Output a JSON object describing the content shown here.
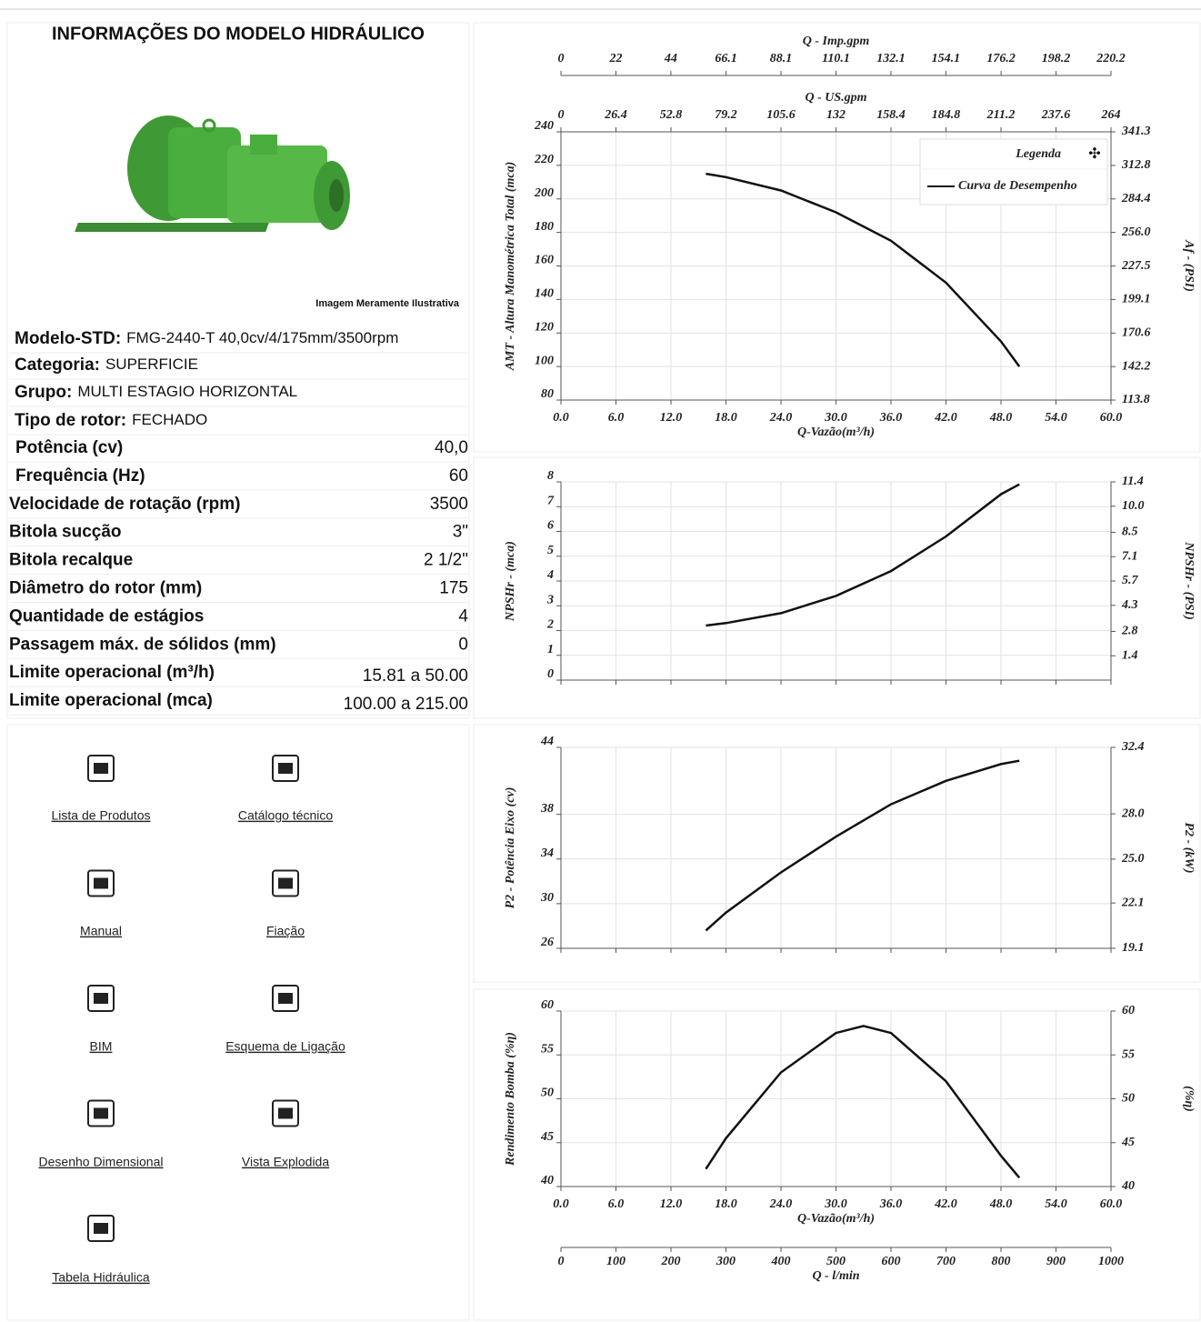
{
  "info": {
    "title": "INFORMAÇÕES DO MODELO HIDRÁULICO",
    "image_caption": "Imagem Meramente Ilustrativa",
    "summary": [
      {
        "label": "Modelo-STD:",
        "value": "FMG-2440-T 40,0cv/4/175mm/3500rpm"
      },
      {
        "label": "Categoria:",
        "value": "SUPERFICIE"
      },
      {
        "label": "Grupo:",
        "value": "MULTI ESTAGIO HORIZONTAL"
      },
      {
        "label": "Tipo de rotor:",
        "value": "FECHADO"
      }
    ],
    "specs": [
      {
        "label": "Potência (cv)",
        "value": "40,0"
      },
      {
        "label": "Frequência (Hz)",
        "value": "60"
      },
      {
        "label": "Velocidade de rotação (rpm)",
        "value": "3500"
      },
      {
        "label": "Bitola sucção",
        "value": "3\""
      },
      {
        "label": "Bitola recalque",
        "value": "2 1/2\""
      },
      {
        "label": "Diâmetro do rotor (mm)",
        "value": "175"
      },
      {
        "label": "Quantidade de estágios",
        "value": "4"
      },
      {
        "label": "Passagem máx. de sólidos (mm)",
        "value": "0"
      },
      {
        "label": "Limite operacional (m³/h)",
        "value": "15.81 a 50.00"
      },
      {
        "label": "Limite operacional (mca)",
        "value": "100.00 a 215.00"
      }
    ],
    "links": [
      "Lista de Produtos",
      "Catálogo técnico",
      "Manual",
      "Fiação",
      "BIM",
      "Esquema de Ligação",
      "Desenho Dimensional",
      "Vista Explodida",
      "Tabela Hidráulica"
    ]
  },
  "chart_data": [
    {
      "type": "line",
      "x_label": "Q-Vazão(m³/h)",
      "y_label": "AMT - Altura Manométrica Total (mca)",
      "y2_label": "Af - (PSI)",
      "xlim": [
        0,
        60
      ],
      "xticks": [
        {
          "value": 0,
          "label": "0.0"
        },
        {
          "value": 6,
          "label": "6.0"
        },
        {
          "value": 12,
          "label": "12.0"
        },
        {
          "value": 18,
          "label": "18.0"
        },
        {
          "value": 24,
          "label": "24.0"
        },
        {
          "value": 30,
          "label": "30.0"
        },
        {
          "value": 36,
          "label": "36.0"
        },
        {
          "value": 42,
          "label": "42.0"
        },
        {
          "value": 48,
          "label": "48.0"
        },
        {
          "value": 54,
          "label": "54.0"
        },
        {
          "value": 60,
          "label": "60.0"
        }
      ],
      "ylim": [
        80,
        240
      ],
      "yticks": [
        80,
        100,
        120,
        140,
        160,
        180,
        200,
        220,
        240
      ],
      "y2lim": [
        113.8,
        341.3
      ],
      "y2ticks": [
        113.8,
        142.2,
        170.6,
        199.1,
        227.5,
        {
          "value": 256,
          "label": "256.0"
        },
        284.4,
        312.8,
        341.3
      ],
      "x2_axes": [
        {
          "label": "Q - Imp.gpm",
          "lim": [
            0,
            220.2
          ],
          "ticks": [
            0,
            22,
            44,
            66.1,
            88.1,
            110.1,
            132.1,
            154.1,
            176.2,
            198.2,
            220.2
          ],
          "position": "top"
        },
        {
          "label": "Q - US.gpm",
          "lim": [
            0,
            264
          ],
          "ticks": [
            0,
            26.4,
            52.8,
            79.2,
            105.6,
            132,
            158.4,
            184.8,
            211.2,
            237.6,
            264
          ],
          "position": "top"
        }
      ],
      "legend": "upper right",
      "legend_title": "Legenda",
      "grid": true,
      "x": [
        15.81,
        18,
        24,
        30,
        36,
        42,
        48,
        50
      ],
      "series": [
        {
          "name": "Curva de Desempenho",
          "color": "#111111",
          "values": [
            215,
            213,
            205,
            192,
            175,
            150,
            115,
            100
          ]
        }
      ]
    },
    {
      "type": "line",
      "y_label": "NPSHr - (mca)",
      "y2_label": "NPSHr - (PSI)",
      "xlim": [
        0,
        60
      ],
      "xticks": [
        0,
        6,
        12,
        18,
        24,
        30,
        36,
        42,
        48,
        54,
        60
      ],
      "ylim": [
        0,
        8
      ],
      "yticks": [
        0,
        1,
        2,
        3,
        4,
        5,
        6,
        7,
        8
      ],
      "y2lim": [
        0,
        11.4
      ],
      "y2ticks": [
        1.4,
        2.8,
        4.3,
        5.7,
        7.1,
        8.5,
        {
          "value": 10,
          "label": "10.0"
        },
        11.4
      ],
      "grid": true,
      "x": [
        15.81,
        18,
        24,
        30,
        36,
        42,
        48,
        50
      ],
      "series": [
        {
          "color": "#111111",
          "values": [
            2.2,
            2.3,
            2.7,
            3.4,
            4.4,
            5.8,
            7.5,
            7.9
          ]
        }
      ]
    },
    {
      "type": "line",
      "y_label": "P2 - Potência Eixo (cv)",
      "y2_label": "P2 - (kW)",
      "xlim": [
        0,
        60
      ],
      "xticks": [
        0,
        6,
        12,
        18,
        24,
        30,
        36,
        42,
        48,
        54,
        60
      ],
      "ylim": [
        26,
        44
      ],
      "yticks": [
        26,
        30,
        34,
        38,
        44
      ],
      "y2lim": [
        19.1,
        32.4
      ],
      "y2ticks": [
        19.1,
        22.1,
        {
          "value": 25,
          "label": "25.0"
        },
        {
          "value": 28,
          "label": "28.0"
        },
        32.4
      ],
      "grid": true,
      "x": [
        15.81,
        18,
        24,
        30,
        36,
        42,
        48,
        50
      ],
      "series": [
        {
          "color": "#111111",
          "values": [
            27.6,
            29.2,
            32.8,
            36,
            38.9,
            41,
            42.5,
            42.8
          ]
        }
      ]
    },
    {
      "type": "line",
      "x_label": "Q-Vazão(m³/h)",
      "y_label": "Rendimento Bomba (%η)",
      "y2_label": "(%η)",
      "xlim": [
        0,
        60
      ],
      "xticks": [
        {
          "value": 0,
          "label": "0.0"
        },
        {
          "value": 6,
          "label": "6.0"
        },
        {
          "value": 12,
          "label": "12.0"
        },
        {
          "value": 18,
          "label": "18.0"
        },
        {
          "value": 24,
          "label": "24.0"
        },
        {
          "value": 30,
          "label": "30.0"
        },
        {
          "value": 36,
          "label": "36.0"
        },
        {
          "value": 42,
          "label": "42.0"
        },
        {
          "value": 48,
          "label": "48.0"
        },
        {
          "value": 54,
          "label": "54.0"
        },
        {
          "value": 60,
          "label": "60.0"
        }
      ],
      "ylim": [
        40,
        60
      ],
      "yticks": [
        40,
        45,
        50,
        55,
        60
      ],
      "y2lim": [
        40,
        60
      ],
      "y2ticks": [
        40,
        45,
        50,
        55,
        60
      ],
      "x2_axes": [
        {
          "label": "Q - l/min",
          "lim": [
            0,
            1000
          ],
          "ticks": [
            0,
            100,
            200,
            300,
            400,
            500,
            600,
            700,
            800,
            900,
            1000
          ],
          "position": "bottom"
        }
      ],
      "grid": true,
      "x": [
        15.81,
        18,
        24,
        30,
        33,
        36,
        42,
        48,
        50
      ],
      "series": [
        {
          "color": "#111111",
          "values": [
            42,
            45.5,
            53,
            57.5,
            58.3,
            57.5,
            52,
            43.5,
            41
          ]
        }
      ]
    }
  ]
}
